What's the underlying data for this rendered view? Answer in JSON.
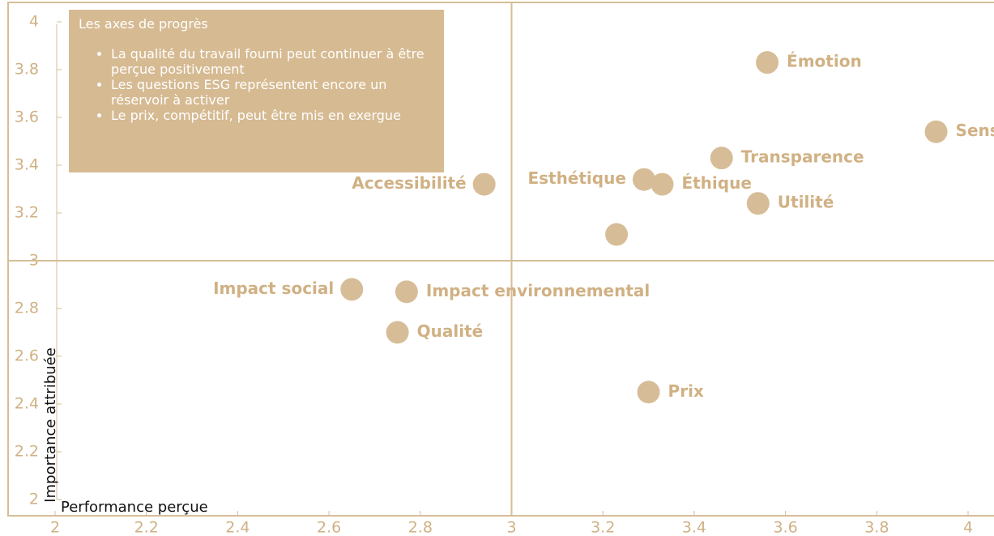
{
  "chart_data": {
    "type": "scatter",
    "x_label": "Performance perçue",
    "y_label": "Importance attribuée",
    "annotation": {
      "title": "Les axes de progrès",
      "items": [
        "La qualité du travail fourni peut continuer à être perçue positivement",
        "Les questions ESG représentent encore un réservoir à activer",
        "Le prix, compétitif, peut être mis en exergue"
      ]
    },
    "labels": [
      "Émotion",
      "Sens",
      "Transparence",
      "Esthétique",
      "Éthique",
      "Utilité",
      null,
      "Accessibilité",
      "Impact social",
      "Impact environnemental",
      "Qualité",
      "Prix"
    ],
    "x": [
      3.56,
      3.93,
      3.46,
      3.29,
      3.33,
      3.54,
      3.23,
      2.94,
      2.65,
      2.77,
      2.75,
      3.3
    ],
    "values": [
      3.83,
      3.54,
      3.43,
      3.34,
      3.32,
      3.24,
      3.11,
      3.32,
      2.88,
      2.87,
      2.7,
      2.45
    ],
    "color": "#d6bd98",
    "xlim": [
      2,
      4
    ],
    "ylim": [
      2,
      4
    ],
    "xticks": [
      2,
      2.2,
      2.4,
      2.6,
      2.8,
      3,
      3.2,
      3.4,
      3.6,
      3.8,
      4
    ],
    "yticks": [
      2,
      2.2,
      2.4,
      2.6,
      2.8,
      3,
      3.2,
      3.4,
      3.6,
      3.8,
      4
    ],
    "quadrant_x": 3,
    "quadrant_y": 3
  }
}
